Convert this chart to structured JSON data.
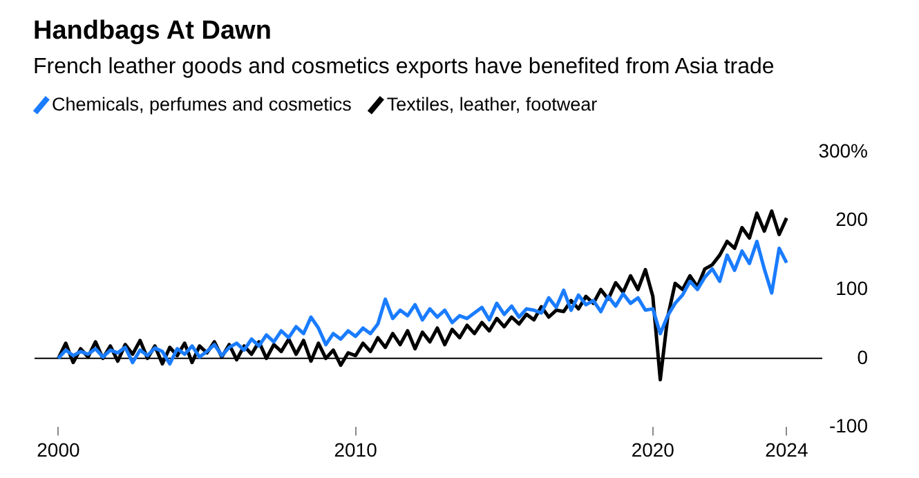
{
  "chart_data": {
    "type": "line",
    "title": "Handbags At Dawn",
    "subtitle": "French leather goods and cosmetics exports have benefited from Asia trade",
    "x": [
      2000,
      2000.25,
      2000.5,
      2000.75,
      2001,
      2001.25,
      2001.5,
      2001.75,
      2002,
      2002.25,
      2002.5,
      2002.75,
      2003,
      2003.25,
      2003.5,
      2003.75,
      2004,
      2004.25,
      2004.5,
      2004.75,
      2005,
      2005.25,
      2005.5,
      2005.75,
      2006,
      2006.25,
      2006.5,
      2006.75,
      2007,
      2007.25,
      2007.5,
      2007.75,
      2008,
      2008.25,
      2008.5,
      2008.75,
      2009,
      2009.25,
      2009.5,
      2009.75,
      2010,
      2010.25,
      2010.5,
      2010.75,
      2011,
      2011.25,
      2011.5,
      2011.75,
      2012,
      2012.25,
      2012.5,
      2012.75,
      2013,
      2013.25,
      2013.5,
      2013.75,
      2014,
      2014.25,
      2014.5,
      2014.75,
      2015,
      2015.25,
      2015.5,
      2015.75,
      2016,
      2016.25,
      2016.5,
      2016.75,
      2017,
      2017.25,
      2017.5,
      2017.75,
      2018,
      2018.25,
      2018.5,
      2018.75,
      2019,
      2019.25,
      2019.5,
      2019.75,
      2020,
      2020.25,
      2020.5,
      2020.75,
      2021,
      2021.25,
      2021.5,
      2021.75,
      2022,
      2022.25,
      2022.5,
      2022.75,
      2023,
      2023.25,
      2023.5,
      2023.75,
      2024,
      2024.25,
      2024.5
    ],
    "series": [
      {
        "name": "Chemicals, perfumes and cosmetics",
        "color": "#1a7cff",
        "values": [
          0,
          12,
          4,
          10,
          6,
          14,
          2,
          12,
          8,
          16,
          -6,
          12,
          4,
          15,
          10,
          -8,
          14,
          6,
          18,
          2,
          10,
          20,
          4,
          16,
          22,
          12,
          28,
          18,
          34,
          24,
          40,
          30,
          46,
          36,
          60,
          44,
          20,
          36,
          28,
          40,
          32,
          44,
          36,
          50,
          86,
          58,
          70,
          62,
          78,
          56,
          72,
          60,
          70,
          52,
          62,
          58,
          66,
          74,
          56,
          80,
          64,
          76,
          60,
          72,
          70,
          66,
          88,
          74,
          99,
          70,
          92,
          78,
          84,
          68,
          90,
          76,
          94,
          80,
          88,
          70,
          72,
          36,
          62,
          80,
          92,
          112,
          100,
          118,
          130,
          112,
          150,
          128,
          156,
          138,
          170,
          130,
          95,
          160,
          139
        ]
      },
      {
        "name": "Textiles, leather, footwear",
        "color": "#000000",
        "values": [
          0,
          22,
          -6,
          14,
          2,
          24,
          0,
          18,
          -4,
          20,
          6,
          26,
          0,
          18,
          -8,
          16,
          4,
          22,
          -6,
          18,
          8,
          24,
          2,
          20,
          -2,
          18,
          6,
          24,
          0,
          20,
          10,
          28,
          6,
          26,
          -4,
          22,
          0,
          12,
          -10,
          8,
          4,
          22,
          10,
          30,
          16,
          36,
          20,
          40,
          14,
          38,
          24,
          44,
          20,
          42,
          30,
          48,
          36,
          52,
          40,
          58,
          46,
          60,
          50,
          64,
          56,
          75,
          60,
          70,
          68,
          84,
          72,
          90,
          80,
          100,
          86,
          110,
          96,
          120,
          100,
          129,
          90,
          -31,
          60,
          109,
          100,
          120,
          104,
          130,
          136,
          150,
          170,
          160,
          190,
          175,
          211,
          185,
          214,
          180,
          204
        ]
      }
    ],
    "xlim": [
      1999.2,
      2025.7
    ],
    "xticks": [
      2000,
      2010,
      2020,
      {
        "value": 2024.5,
        "label": "2024"
      }
    ],
    "ylim": [
      -100,
      300
    ],
    "yticks": [
      -100,
      0,
      100,
      200,
      {
        "value": 300,
        "label": "300%"
      }
    ],
    "ref_lines": [
      {
        "axis": "y",
        "value": 0,
        "color": "#000000"
      }
    ],
    "grid": false,
    "legend": "top left"
  }
}
